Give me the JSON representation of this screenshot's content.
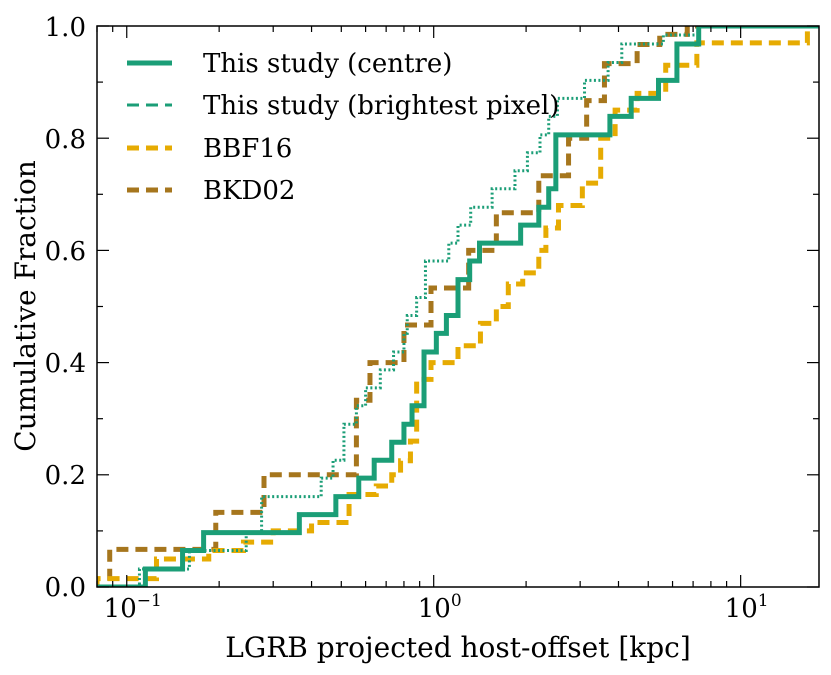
{
  "chart_data": {
    "type": "line",
    "step": true,
    "xscale": "log",
    "xlim": [
      0.08,
      18
    ],
    "ylim": [
      0.0,
      1.0
    ],
    "xlabel": "LGRB projected host-offset [kpc]",
    "ylabel": "Cumulative Fraction",
    "xticks": [
      {
        "value": 0.1,
        "base": "10",
        "exp": "−1"
      },
      {
        "value": 1,
        "base": "10",
        "exp": "0"
      },
      {
        "value": 10,
        "base": "10",
        "exp": "1"
      }
    ],
    "yticks": [
      "0.0",
      "0.2",
      "0.4",
      "0.6",
      "0.8",
      "1.0"
    ],
    "legend_position": "upper-left",
    "series": [
      {
        "name": "This study (centre)",
        "color": "#1b9e77",
        "style": "solid",
        "x": [
          0.115,
          0.152,
          0.178,
          0.365,
          0.48,
          0.57,
          0.64,
          0.73,
          0.8,
          0.85,
          0.93,
          1.02,
          1.1,
          1.2,
          1.31,
          1.41,
          1.92,
          2.2,
          2.37,
          2.5,
          3.75,
          4.4,
          5.4,
          6.2,
          7.3
        ],
        "y": [
          0.032,
          0.065,
          0.097,
          0.129,
          0.161,
          0.194,
          0.226,
          0.258,
          0.29,
          0.323,
          0.419,
          0.452,
          0.484,
          0.548,
          0.581,
          0.613,
          0.645,
          0.677,
          0.71,
          0.806,
          0.839,
          0.871,
          0.903,
          0.968,
          1.0
        ]
      },
      {
        "name": "This study (brightest pixel)",
        "color": "#1b9e77",
        "style": "dotted",
        "x": [
          0.11,
          0.16,
          0.245,
          0.275,
          0.43,
          0.47,
          0.51,
          0.56,
          0.6,
          0.67,
          0.74,
          0.8,
          0.82,
          0.88,
          0.94,
          1.12,
          1.2,
          1.32,
          1.55,
          1.84,
          2.02,
          2.22,
          2.37,
          2.53,
          3.1,
          3.7,
          4.1,
          5.6,
          7.3
        ],
        "y": [
          0.032,
          0.065,
          0.097,
          0.161,
          0.194,
          0.226,
          0.29,
          0.323,
          0.355,
          0.387,
          0.419,
          0.452,
          0.484,
          0.516,
          0.581,
          0.613,
          0.645,
          0.677,
          0.71,
          0.742,
          0.774,
          0.806,
          0.839,
          0.871,
          0.903,
          0.935,
          0.968,
          0.984,
          1.0
        ]
      },
      {
        "name": "BBF16",
        "color": "#e6ab02",
        "style": "dashed",
        "x": [
          0.08,
          0.125,
          0.185,
          0.24,
          0.3,
          0.4,
          0.53,
          0.65,
          0.73,
          0.78,
          0.84,
          0.88,
          0.98,
          1.2,
          1.42,
          1.6,
          1.75,
          1.95,
          2.2,
          2.32,
          2.55,
          3.05,
          3.5,
          3.9,
          4.6,
          5.7,
          7.2,
          16.5
        ],
        "y": [
          0.015,
          0.05,
          0.065,
          0.08,
          0.1,
          0.115,
          0.165,
          0.18,
          0.2,
          0.225,
          0.26,
          0.37,
          0.4,
          0.43,
          0.47,
          0.5,
          0.54,
          0.56,
          0.6,
          0.64,
          0.68,
          0.72,
          0.8,
          0.85,
          0.88,
          0.93,
          0.97,
          1.0
        ]
      },
      {
        "name": "BKD02",
        "color": "#a6761d",
        "style": "dashed",
        "x": [
          0.088,
          0.195,
          0.28,
          0.56,
          0.62,
          0.8,
          0.98,
          1.3,
          1.6,
          2.2,
          2.75,
          3.15,
          3.6,
          4.6,
          5.45,
          6.7
        ],
        "y": [
          0.067,
          0.133,
          0.2,
          0.333,
          0.4,
          0.467,
          0.533,
          0.6,
          0.667,
          0.733,
          0.8,
          0.867,
          0.933,
          0.967,
          0.985,
          1.0
        ]
      }
    ]
  }
}
